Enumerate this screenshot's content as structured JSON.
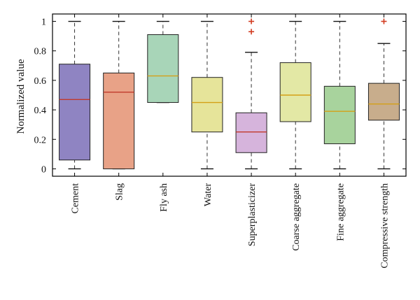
{
  "chart_data": {
    "type": "boxplot",
    "title": "",
    "xlabel": "",
    "ylabel": "Normalized value",
    "ylim": [
      -0.05,
      1.05
    ],
    "yticks": [
      0,
      0.2,
      0.4,
      0.6,
      0.8,
      1
    ],
    "ytick_labels": [
      "0",
      "0.2",
      "0.4",
      "0.6",
      "0.8",
      "1"
    ],
    "grid": false,
    "categories": [
      "Cement",
      "Slag",
      "Fly ash",
      "Water",
      "Superplasticizer",
      "Coarse aggregate",
      "Fine aggregate",
      "Compressive strength"
    ],
    "boxes": [
      {
        "whisker_low": 0,
        "q1": 0.06,
        "median": 0.47,
        "q3": 0.71,
        "whisker_high": 1,
        "outliers": [],
        "color": "#8f84c2",
        "median_color": "#c0392b"
      },
      {
        "whisker_low": 0,
        "q1": 0.0,
        "median": 0.52,
        "q3": 0.65,
        "whisker_high": 1,
        "outliers": [],
        "color": "#e8a287",
        "median_color": "#c0392b"
      },
      {
        "whisker_low": 0.45,
        "q1": 0.45,
        "median": 0.63,
        "q3": 0.91,
        "whisker_high": 1,
        "outliers": [],
        "color": "#a8d5b8",
        "median_color": "#d4a017"
      },
      {
        "whisker_low": 0,
        "q1": 0.25,
        "median": 0.45,
        "q3": 0.62,
        "whisker_high": 1,
        "outliers": [],
        "color": "#e6e49a",
        "median_color": "#d4a017"
      },
      {
        "whisker_low": 0,
        "q1": 0.11,
        "median": 0.25,
        "q3": 0.38,
        "whisker_high": 0.79,
        "outliers": [
          0.93,
          1.0
        ],
        "color": "#d6b4dc",
        "median_color": "#c0392b"
      },
      {
        "whisker_low": 0,
        "q1": 0.32,
        "median": 0.5,
        "q3": 0.72,
        "whisker_high": 1,
        "outliers": [],
        "color": "#e3e8a5",
        "median_color": "#d4a017"
      },
      {
        "whisker_low": 0,
        "q1": 0.17,
        "median": 0.39,
        "q3": 0.56,
        "whisker_high": 1,
        "outliers": [],
        "color": "#a8d39d",
        "median_color": "#d4a017"
      },
      {
        "whisker_low": 0,
        "q1": 0.33,
        "median": 0.44,
        "q3": 0.58,
        "whisker_high": 0.85,
        "outliers": [
          1.0
        ],
        "color": "#c8ad8c",
        "median_color": "#d4a017"
      }
    ],
    "outlier_color": "#d23a1f"
  }
}
